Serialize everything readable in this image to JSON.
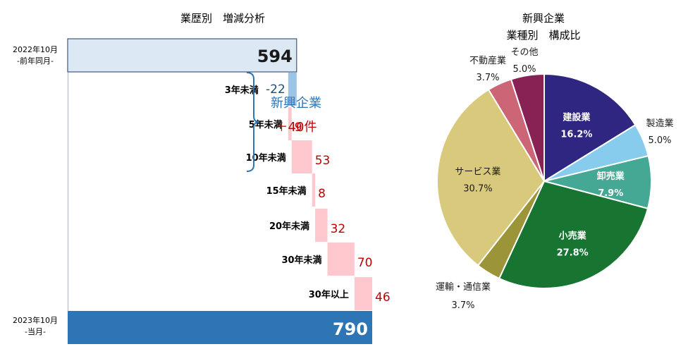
{
  "chart_data": [
    {
      "type": "waterfall",
      "title": "業歴別　増減分析",
      "start": {
        "label_line1": "2022年10月",
        "label_line2": "-前年同月-",
        "value": 594
      },
      "end": {
        "label_line1": "2023年10月",
        "label_line2": "-当月-",
        "value": 790
      },
      "categories": [
        "3年未満",
        "5年未満",
        "10年未満",
        "15年未満",
        "20年未満",
        "30年未満",
        "30年以上"
      ],
      "values": [
        -22,
        9,
        53,
        8,
        32,
        70,
        46
      ],
      "value_labels": [
        "-22",
        "9",
        "53",
        "8",
        "32",
        "70",
        "46"
      ],
      "annotation": {
        "line1": "新興企業",
        "line2": "＋40件",
        "spans_categories": [
          "3年未満",
          "5年未満",
          "10年未満"
        ]
      },
      "colors": {
        "start": "#dce9f5",
        "start_border": "#1f3864",
        "end": "#2e75b6",
        "increase": "#ffc7ce",
        "decrease": "#9dc3e6",
        "increase_text": "#c00000",
        "decrease_text": "#1f4e79",
        "annotation_title": "#2e75b6",
        "annotation_value": "#c00000",
        "bracket": "#2e75b6"
      }
    },
    {
      "type": "pie",
      "title_line1": "新興企業",
      "title_line2": "業種別　構成比",
      "slices": [
        {
          "name": "建設業",
          "value": 16.2,
          "label": "16.2%",
          "color": "#2e2680",
          "label_inside": true
        },
        {
          "name": "製造業",
          "value": 5.0,
          "label": "5.0%",
          "color": "#87ccec",
          "label_inside": false
        },
        {
          "name": "卸売業",
          "value": 7.9,
          "label": "7.9%",
          "color": "#45a894",
          "label_inside": true
        },
        {
          "name": "小売業",
          "value": 27.8,
          "label": "27.8%",
          "color": "#177531",
          "label_inside": true
        },
        {
          "name": "運輸・通信業",
          "value": 3.7,
          "label": "3.7%",
          "color": "#9b9438",
          "label_inside": false
        },
        {
          "name": "サービス業",
          "value": 30.7,
          "label": "30.7%",
          "color": "#d8c97c",
          "label_inside": true
        },
        {
          "name": "不動産業",
          "value": 3.7,
          "label": "3.7%",
          "color": "#cc6677",
          "label_inside": false
        },
        {
          "name": "その他",
          "value": 5.0,
          "label": "5.0%",
          "color": "#882255",
          "label_inside": false
        }
      ]
    }
  ]
}
